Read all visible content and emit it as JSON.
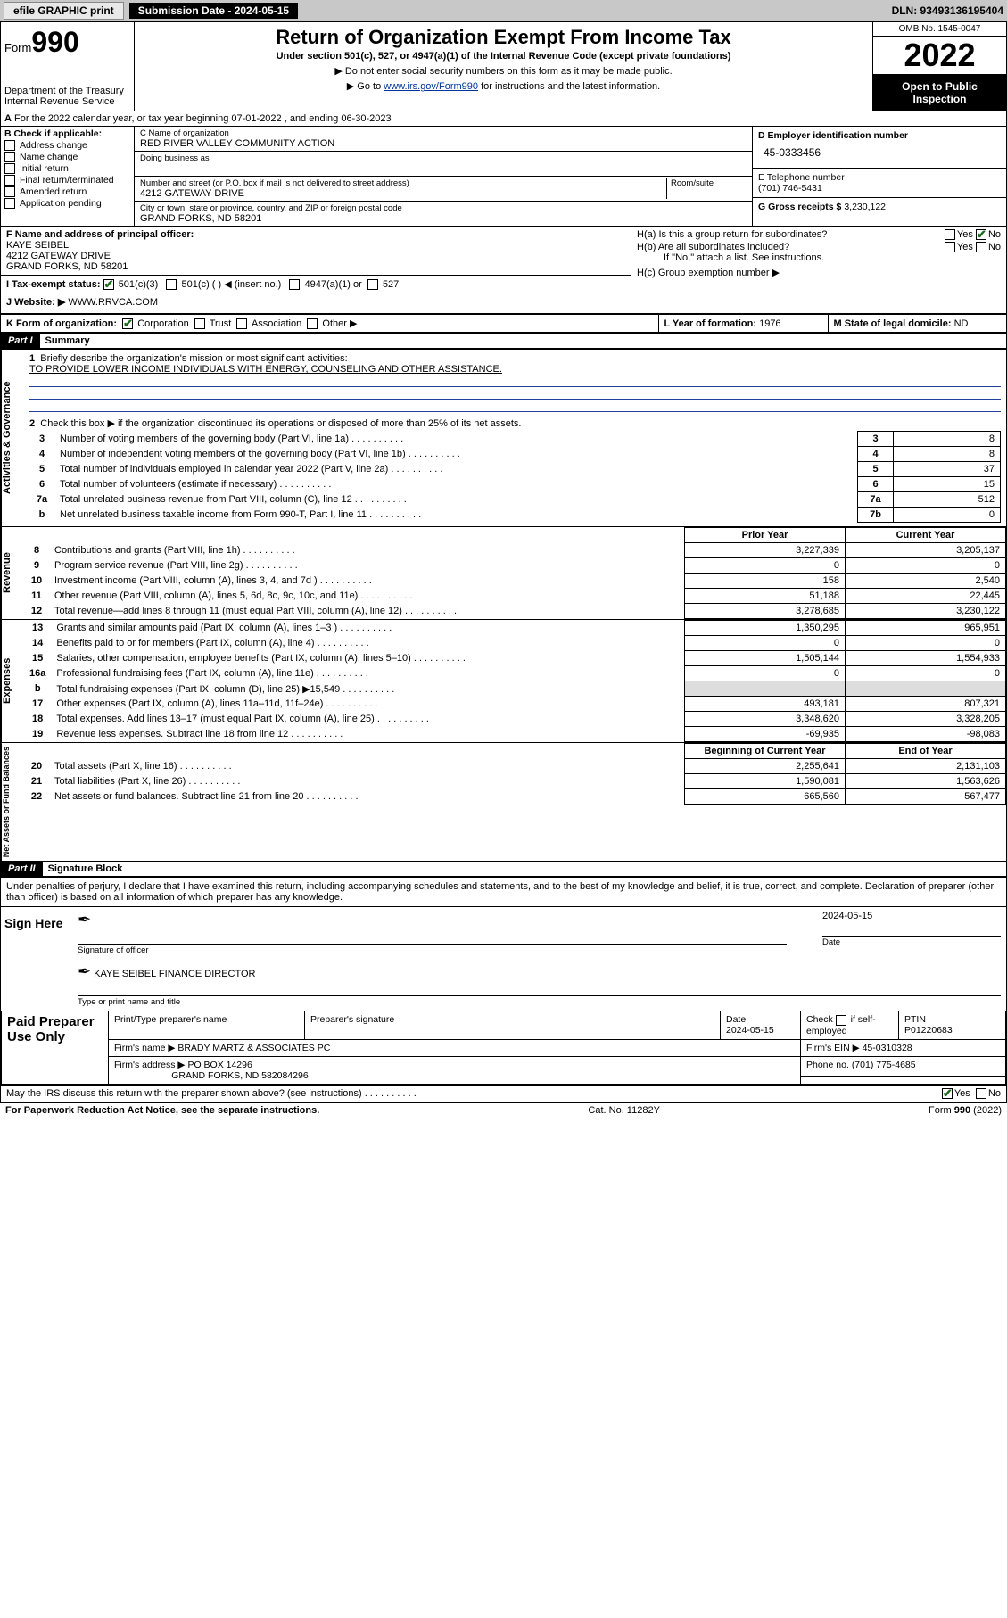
{
  "topbar": {
    "efile": "efile GRAPHIC print",
    "submission_label": "Submission Date - 2024-05-15",
    "dln": "DLN: 93493136195404"
  },
  "header": {
    "form_word": "Form",
    "form_no": "990",
    "dept": "Department of the Treasury",
    "irs": "Internal Revenue Service",
    "title": "Return of Organization Exempt From Income Tax",
    "subtitle": "Under section 501(c), 527, or 4947(a)(1) of the Internal Revenue Code (except private foundations)",
    "note1": "▶ Do not enter social security numbers on this form as it may be made public.",
    "note2_a": "▶ Go to ",
    "note2_link": "www.irs.gov/Form990",
    "note2_b": " for instructions and the latest information.",
    "omb": "OMB No. 1545-0047",
    "year": "2022",
    "open": "Open to Public Inspection"
  },
  "lineA": "For the 2022 calendar year, or tax year beginning 07-01-2022   , and ending 06-30-2023",
  "boxB": {
    "label": "B Check if applicable:",
    "items": [
      "Address change",
      "Name change",
      "Initial return",
      "Final return/terminated",
      "Amended return",
      "Application pending"
    ]
  },
  "boxC": {
    "name_label": "C Name of organization",
    "name": "RED RIVER VALLEY COMMUNITY ACTION",
    "dba_label": "Doing business as",
    "addr_label": "Number and street (or P.O. box if mail is not delivered to street address)",
    "room_label": "Room/suite",
    "addr": "4212 GATEWAY DRIVE",
    "city_label": "City or town, state or province, country, and ZIP or foreign postal code",
    "city": "GRAND FORKS, ND  58201"
  },
  "boxD": {
    "label": "D Employer identification number",
    "val": "45-0333456"
  },
  "boxE": {
    "label": "E Telephone number",
    "val": "(701) 746-5431"
  },
  "boxG": {
    "label": "G Gross receipts $",
    "val": "3,230,122"
  },
  "boxF": {
    "label": "F Name and address of principal officer:",
    "name": "KAYE SEIBEL",
    "addr1": "4212 GATEWAY DRIVE",
    "addr2": "GRAND FORKS, ND  58201"
  },
  "boxH": {
    "a": "H(a)  Is this a group return for subordinates?",
    "b": "H(b)  Are all subordinates included?",
    "bnote": "If \"No,\" attach a list. See instructions.",
    "c": "H(c)  Group exemption number ▶",
    "yes": "Yes",
    "no": "No"
  },
  "lineI": {
    "label": "I    Tax-exempt status:",
    "o1": "501(c)(3)",
    "o2": "501(c) (  ) ◀ (insert no.)",
    "o3": "4947(a)(1) or",
    "o4": "527"
  },
  "lineJ": {
    "label": "J    Website: ▶",
    "val": "WWW.RRVCA.COM"
  },
  "lineK": {
    "label": "K Form of organization:",
    "o1": "Corporation",
    "o2": "Trust",
    "o3": "Association",
    "o4": "Other ▶"
  },
  "lineL": {
    "label": "L Year of formation:",
    "val": "1976"
  },
  "lineM": {
    "label": "M State of legal domicile:",
    "val": "ND"
  },
  "partI": {
    "bar": "Part I",
    "title": "Summary"
  },
  "summary": {
    "q1": "Briefly describe the organization's mission or most significant activities:",
    "mission": "TO PROVIDE LOWER INCOME INDIVIDUALS WITH ENERGY, COUNSELING AND OTHER ASSISTANCE.",
    "q2": "Check this box ▶        if the organization discontinued its operations or disposed of more than 25% of its net assets.",
    "rows_top": [
      {
        "n": "3",
        "t": "Number of voting members of the governing body (Part VI, line 1a)",
        "box": "3",
        "v": "8"
      },
      {
        "n": "4",
        "t": "Number of independent voting members of the governing body (Part VI, line 1b)",
        "box": "4",
        "v": "8"
      },
      {
        "n": "5",
        "t": "Total number of individuals employed in calendar year 2022 (Part V, line 2a)",
        "box": "5",
        "v": "37"
      },
      {
        "n": "6",
        "t": "Total number of volunteers (estimate if necessary)",
        "box": "6",
        "v": "15"
      },
      {
        "n": "7a",
        "t": "Total unrelated business revenue from Part VIII, column (C), line 12",
        "box": "7a",
        "v": "512"
      },
      {
        "n": "b",
        "t": "Net unrelated business taxable income from Form 990-T, Part I, line 11",
        "box": "7b",
        "v": "0"
      }
    ],
    "col_prior": "Prior Year",
    "col_curr": "Current Year",
    "rev": [
      {
        "n": "8",
        "t": "Contributions and grants (Part VIII, line 1h)",
        "p": "3,227,339",
        "c": "3,205,137"
      },
      {
        "n": "9",
        "t": "Program service revenue (Part VIII, line 2g)",
        "p": "0",
        "c": "0"
      },
      {
        "n": "10",
        "t": "Investment income (Part VIII, column (A), lines 3, 4, and 7d )",
        "p": "158",
        "c": "2,540"
      },
      {
        "n": "11",
        "t": "Other revenue (Part VIII, column (A), lines 5, 6d, 8c, 9c, 10c, and 11e)",
        "p": "51,188",
        "c": "22,445"
      },
      {
        "n": "12",
        "t": "Total revenue—add lines 8 through 11 (must equal Part VIII, column (A), line 12)",
        "p": "3,278,685",
        "c": "3,230,122"
      }
    ],
    "exp": [
      {
        "n": "13",
        "t": "Grants and similar amounts paid (Part IX, column (A), lines 1–3 )",
        "p": "1,350,295",
        "c": "965,951"
      },
      {
        "n": "14",
        "t": "Benefits paid to or for members (Part IX, column (A), line 4)",
        "p": "0",
        "c": "0"
      },
      {
        "n": "15",
        "t": "Salaries, other compensation, employee benefits (Part IX, column (A), lines 5–10)",
        "p": "1,505,144",
        "c": "1,554,933"
      },
      {
        "n": "16a",
        "t": "Professional fundraising fees (Part IX, column (A), line 11e)",
        "p": "0",
        "c": "0"
      },
      {
        "n": "b",
        "t": "Total fundraising expenses (Part IX, column (D), line 25) ▶15,549",
        "p": "",
        "c": ""
      },
      {
        "n": "17",
        "t": "Other expenses (Part IX, column (A), lines 11a–11d, 11f–24e)",
        "p": "493,181",
        "c": "807,321"
      },
      {
        "n": "18",
        "t": "Total expenses. Add lines 13–17 (must equal Part IX, column (A), line 25)",
        "p": "3,348,620",
        "c": "3,328,205"
      },
      {
        "n": "19",
        "t": "Revenue less expenses. Subtract line 18 from line 12",
        "p": "-69,935",
        "c": "-98,083"
      }
    ],
    "col_beg": "Beginning of Current Year",
    "col_end": "End of Year",
    "net": [
      {
        "n": "20",
        "t": "Total assets (Part X, line 16)",
        "p": "2,255,641",
        "c": "2,131,103"
      },
      {
        "n": "21",
        "t": "Total liabilities (Part X, line 26)",
        "p": "1,590,081",
        "c": "1,563,626"
      },
      {
        "n": "22",
        "t": "Net assets or fund balances. Subtract line 21 from line 20",
        "p": "665,560",
        "c": "567,477"
      }
    ],
    "vlabels": {
      "ag": "Activities & Governance",
      "rev": "Revenue",
      "exp": "Expenses",
      "net": "Net Assets or Fund Balances"
    }
  },
  "partII": {
    "bar": "Part II",
    "title": "Signature Block"
  },
  "sig": {
    "decl": "Under penalties of perjury, I declare that I have examined this return, including accompanying schedules and statements, and to the best of my knowledge and belief, it is true, correct, and complete. Declaration of preparer (other than officer) is based on all information of which preparer has any knowledge.",
    "sign_here": "Sign Here",
    "officer_sig": "Signature of officer",
    "date": "Date",
    "date_val": "2024-05-15",
    "officer_name": "KAYE SEIBEL FINANCE DIRECTOR",
    "officer_label": "Type or print name and title"
  },
  "prep": {
    "left": "Paid Preparer Use Only",
    "h1": "Print/Type preparer's name",
    "h2": "Preparer's signature",
    "h3": "Date",
    "h4": "Check        if self-employed",
    "h5": "PTIN",
    "date": "2024-05-15",
    "ptin": "P01220683",
    "firm_label": "Firm's name    ▶",
    "firm": "BRADY MARTZ & ASSOCIATES PC",
    "ein_label": "Firm's EIN ▶",
    "ein": "45-0310328",
    "addr_label": "Firm's address ▶",
    "addr1": "PO BOX 14296",
    "addr2": "GRAND FORKS, ND  582084296",
    "phone_label": "Phone no.",
    "phone": "(701) 775-4685",
    "discuss": "May the IRS discuss this return with the preparer shown above? (see instructions)",
    "yes": "Yes",
    "no": "No"
  },
  "footer": {
    "left": "For Paperwork Reduction Act Notice, see the separate instructions.",
    "mid": "Cat. No. 11282Y",
    "right": "Form 990 (2022)"
  }
}
